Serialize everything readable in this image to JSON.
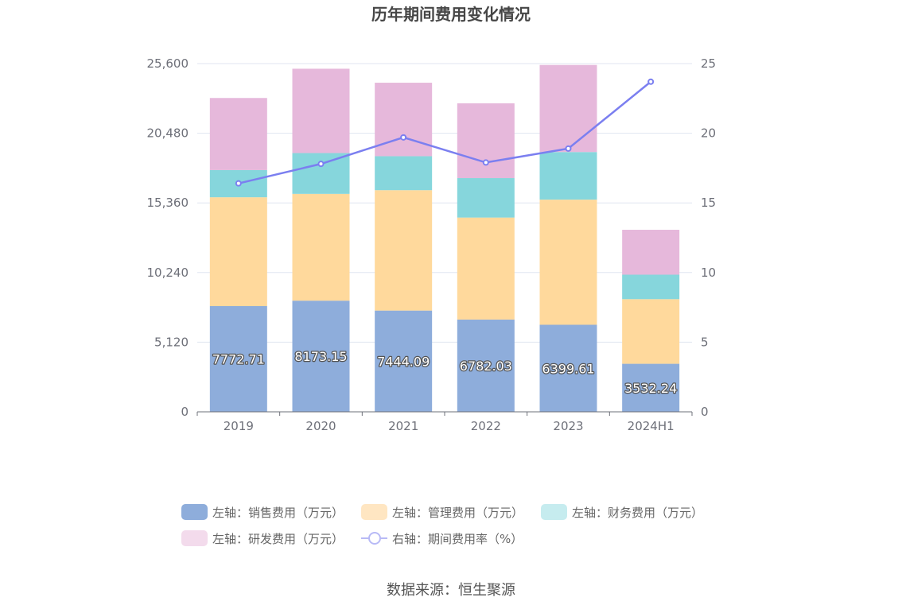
{
  "title": "历年期间费用变化情况",
  "source": "数据来源：恒生聚源",
  "chart_data": {
    "type": "bar",
    "stacked": true,
    "categories": [
      "2019",
      "2020",
      "2021",
      "2022",
      "2023",
      "2024H1"
    ],
    "left_axis": {
      "min": 0,
      "max": 25600,
      "ticks": [
        "0",
        "5,120",
        "10,240",
        "15,360",
        "20,480",
        "25,600"
      ]
    },
    "right_axis": {
      "min": 0,
      "max": 25,
      "ticks": [
        "0",
        "5",
        "10",
        "15",
        "20",
        "25"
      ]
    },
    "grid": true,
    "legend_position": "bottom",
    "series": [
      {
        "name": "左轴：销售费用（万元）",
        "axis": "left",
        "type": "bar",
        "color": "#8eaddb",
        "legend_color": "#8eaddb",
        "values": [
          7772.71,
          8173.15,
          7444.09,
          6782.03,
          6399.61,
          3532.24
        ],
        "labels": [
          "7772.71",
          "8173.15",
          "7444.09",
          "6782.03",
          "6399.61",
          "3532.24"
        ]
      },
      {
        "name": "左轴：管理费用（万元）",
        "axis": "left",
        "type": "bar",
        "color": "#ffd99c",
        "legend_color": "#ffe6c2",
        "values": [
          8000,
          7850,
          8850,
          7500,
          9200,
          4750
        ]
      },
      {
        "name": "左轴：财务费用（万元）",
        "axis": "left",
        "type": "bar",
        "color": "#86d6dc",
        "legend_color": "#c6ecef",
        "values": [
          2000,
          3000,
          2500,
          2900,
          3500,
          1800
        ]
      },
      {
        "name": "左轴：研发费用（万元）",
        "axis": "left",
        "type": "bar",
        "color": "#e6b8db",
        "legend_color": "#f3dbec",
        "values": [
          5300,
          6200,
          5400,
          5500,
          6400,
          3300
        ]
      },
      {
        "name": "右轴：期间费用率（%）",
        "axis": "right",
        "type": "line",
        "color": "#7b7ff0",
        "legend_color": "#b8baf6",
        "values": [
          16.4,
          17.8,
          19.7,
          17.9,
          18.9,
          23.7
        ]
      }
    ]
  }
}
